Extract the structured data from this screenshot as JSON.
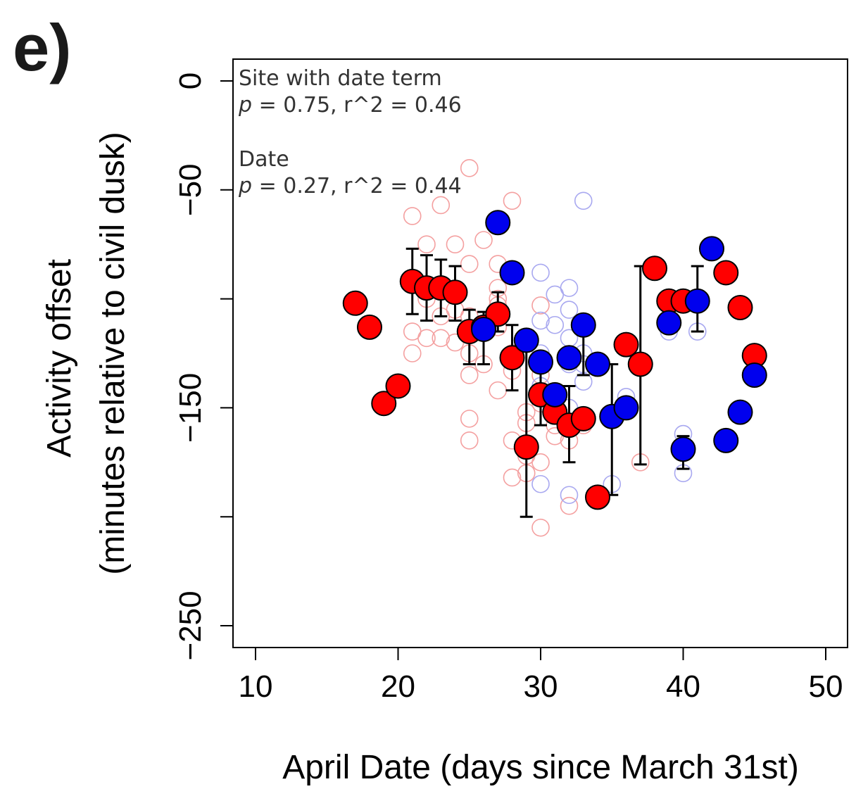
{
  "panel_label": "e)",
  "chart_data": {
    "type": "scatter",
    "xlabel": "April Date (days since March 31st)",
    "ylabel_line1": "Activity offset",
    "ylabel_line2": "(minutes relative to civil dusk)",
    "xlim": [
      8.5,
      50.5
    ],
    "ylim": [
      -260,
      10
    ],
    "x_ticks": [
      10,
      20,
      30,
      40,
      50
    ],
    "y_ticks": [
      0,
      -50,
      -100,
      -150,
      -200,
      -250
    ],
    "y_tick_labels": [
      "0",
      "−50",
      "",
      "−150",
      "",
      "−250"
    ],
    "grid": false,
    "annotations": [
      {
        "key": "Site with date term",
        "lines": [
          "Site with date term",
          "p = 0.75, r^2 = 0.46"
        ]
      },
      {
        "key": "Date",
        "lines": [
          "Date",
          "p = 0.27, r^2 = 0.44"
        ]
      }
    ],
    "annotation_text": {
      "a1_title": "Site with date term",
      "a1_p": "p",
      "a1_rest": " = 0.75, r^2 = 0.46",
      "a2_title": "Date",
      "a2_p": "p",
      "a2_rest": " = 0.27, r^2 = 0.44"
    },
    "colors": {
      "red": "#ff0000",
      "blue": "#0000ee",
      "red_light": "#f4a0a0",
      "blue_light": "#a8a8f0"
    },
    "series": [
      {
        "color": "red",
        "kind": "raw",
        "points": [
          [
            21,
            -62
          ],
          [
            22,
            -75
          ],
          [
            23,
            -57
          ],
          [
            24,
            -75
          ],
          [
            25,
            -40
          ],
          [
            25,
            -84
          ],
          [
            26,
            -73
          ],
          [
            27,
            -84
          ],
          [
            28,
            -55
          ],
          [
            21,
            -115
          ],
          [
            21,
            -125
          ],
          [
            22,
            -100
          ],
          [
            22,
            -118
          ],
          [
            23,
            -108
          ],
          [
            23,
            -118
          ],
          [
            24,
            -105
          ],
          [
            24,
            -120
          ],
          [
            25,
            -108
          ],
          [
            25,
            -125
          ],
          [
            25,
            -135
          ],
          [
            25,
            -155
          ],
          [
            25,
            -165
          ],
          [
            26,
            -112
          ],
          [
            26,
            -130
          ],
          [
            27,
            -95
          ],
          [
            27,
            -100
          ],
          [
            27,
            -103
          ],
          [
            27,
            -113
          ],
          [
            27,
            -142
          ],
          [
            28,
            -125
          ],
          [
            28,
            -133
          ],
          [
            28,
            -165
          ],
          [
            28,
            -182
          ],
          [
            29,
            -152
          ],
          [
            29,
            -157
          ],
          [
            29,
            -172
          ],
          [
            29,
            -180
          ],
          [
            30,
            -103
          ],
          [
            30,
            -128
          ],
          [
            30,
            -135
          ],
          [
            30,
            -148
          ],
          [
            30,
            -175
          ],
          [
            30,
            -205
          ],
          [
            31,
            -158
          ],
          [
            31,
            -163
          ],
          [
            32,
            -165
          ],
          [
            32,
            -195
          ],
          [
            33,
            -158
          ],
          [
            37,
            -175
          ]
        ]
      },
      {
        "color": "blue",
        "kind": "raw",
        "points": [
          [
            30,
            -88
          ],
          [
            30,
            -110
          ],
          [
            30,
            -125
          ],
          [
            30,
            -140
          ],
          [
            30,
            -185
          ],
          [
            31,
            -98
          ],
          [
            31,
            -112
          ],
          [
            32,
            -95
          ],
          [
            32,
            -105
          ],
          [
            32,
            -118
          ],
          [
            32,
            -130
          ],
          [
            32,
            -150
          ],
          [
            32,
            -190
          ],
          [
            33,
            -55
          ],
          [
            33,
            -125
          ],
          [
            33,
            -130
          ],
          [
            33,
            -138
          ],
          [
            35,
            -185
          ],
          [
            36,
            -145
          ],
          [
            39,
            -115
          ],
          [
            40,
            -162
          ],
          [
            40,
            -180
          ],
          [
            41,
            -115
          ]
        ]
      },
      {
        "color": "red",
        "kind": "mean",
        "points": [
          [
            17,
            -102
          ],
          [
            18,
            -113
          ],
          [
            19,
            -148
          ],
          [
            20,
            -140
          ],
          [
            21,
            -92
          ],
          [
            22,
            -95
          ],
          [
            23,
            -95
          ],
          [
            24,
            -97
          ],
          [
            25,
            -115
          ],
          [
            26,
            -113
          ],
          [
            27,
            -107
          ],
          [
            28,
            -127
          ],
          [
            29,
            -168
          ],
          [
            30,
            -144
          ],
          [
            31,
            -152
          ],
          [
            32,
            -158
          ],
          [
            33,
            -155
          ],
          [
            34,
            -191
          ],
          [
            36,
            -121
          ],
          [
            37,
            -130
          ],
          [
            38,
            -86
          ],
          [
            39,
            -101
          ],
          [
            40,
            -101
          ],
          [
            43,
            -88
          ],
          [
            44,
            -104
          ],
          [
            45,
            -126
          ]
        ]
      },
      {
        "color": "blue",
        "kind": "mean",
        "points": [
          [
            26,
            -114
          ],
          [
            27,
            -65
          ],
          [
            28,
            -88
          ],
          [
            29,
            -119
          ],
          [
            30,
            -129
          ],
          [
            31,
            -144
          ],
          [
            32,
            -127
          ],
          [
            33,
            -112
          ],
          [
            34,
            -130
          ],
          [
            35,
            -154
          ],
          [
            36,
            -150
          ],
          [
            40,
            -169
          ],
          [
            39,
            -111
          ],
          [
            41,
            -101
          ],
          [
            42,
            -77
          ],
          [
            43,
            -165
          ],
          [
            44,
            -152
          ],
          [
            45,
            -135
          ]
        ]
      }
    ],
    "error_bars": [
      [
        21,
        -77,
        -107
      ],
      [
        22,
        -80,
        -110
      ],
      [
        23,
        -82,
        -108
      ],
      [
        24,
        -85,
        -110
      ],
      [
        25,
        -105,
        -130
      ],
      [
        26,
        -106,
        -130
      ],
      [
        27,
        -97,
        -115
      ],
      [
        28,
        -112,
        -142
      ],
      [
        29,
        -118,
        -200
      ],
      [
        30,
        -128,
        -158
      ],
      [
        31,
        -144,
        -155
      ],
      [
        32,
        -140,
        -175
      ],
      [
        33,
        -115,
        -135
      ],
      [
        35,
        -130,
        -190
      ],
      [
        37,
        -85,
        -176
      ],
      [
        41,
        -85,
        -115
      ],
      [
        40,
        -163,
        -178
      ]
    ]
  }
}
